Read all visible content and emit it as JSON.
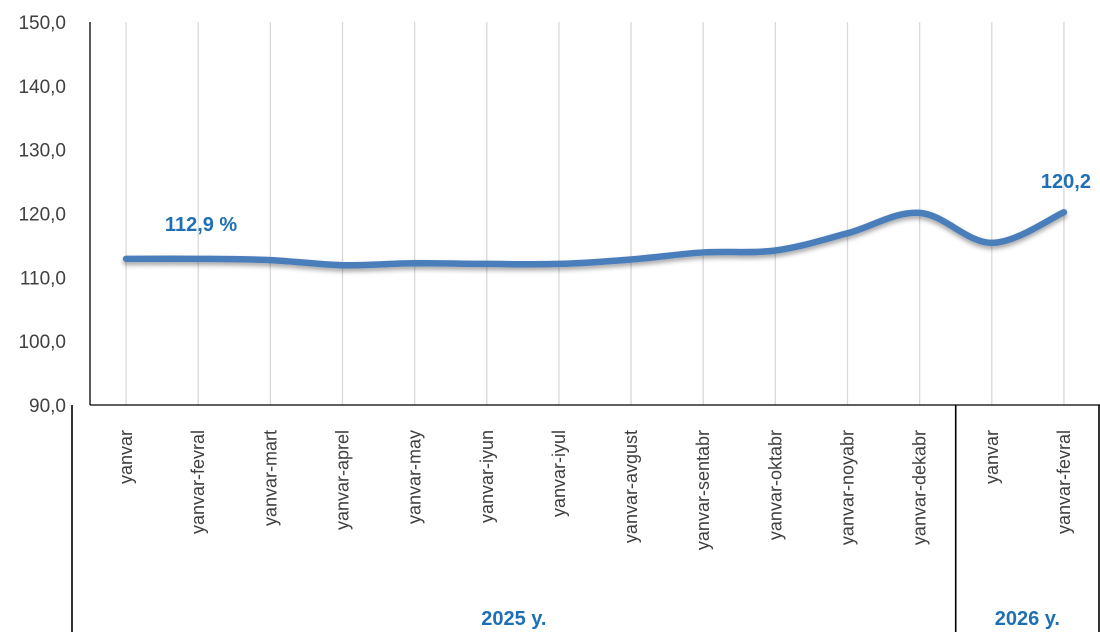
{
  "chart_data": {
    "type": "line",
    "categories": [
      "yanvar",
      "yanvar-fevral",
      "yanvar-mart",
      "yanvar-aprel",
      "yanvar-may",
      "yanvar-iyun",
      "yanvar-iyul",
      "yanvar-avgust",
      "yanvar-sentabr",
      "yanvar-oktabr",
      "yanvar-noyabr",
      "yanvar-dekabr",
      "yanvar",
      "yanvar-fevral"
    ],
    "values": [
      112.9,
      112.9,
      112.7,
      111.9,
      112.2,
      112.1,
      112.1,
      112.8,
      113.9,
      114.2,
      116.9,
      120.1,
      115.4,
      120.2
    ],
    "category_groups": [
      {
        "label": "2025 y.",
        "start": 0,
        "end": 11
      },
      {
        "label": "2026 y.",
        "start": 12,
        "end": 13
      }
    ],
    "data_labels": [
      {
        "index": 0,
        "text": "112,9 %"
      },
      {
        "index": 13,
        "text": "120,2"
      }
    ],
    "y_ticks": [
      "90,0",
      "100,0",
      "110,0",
      "120,0",
      "130,0",
      "140,0",
      "150,0"
    ],
    "ylim": [
      90,
      150
    ],
    "grid": "vertical",
    "line_color": "#4a7ebb",
    "label_color": "#1f6fb5",
    "title": "",
    "xlabel": "",
    "ylabel": ""
  }
}
